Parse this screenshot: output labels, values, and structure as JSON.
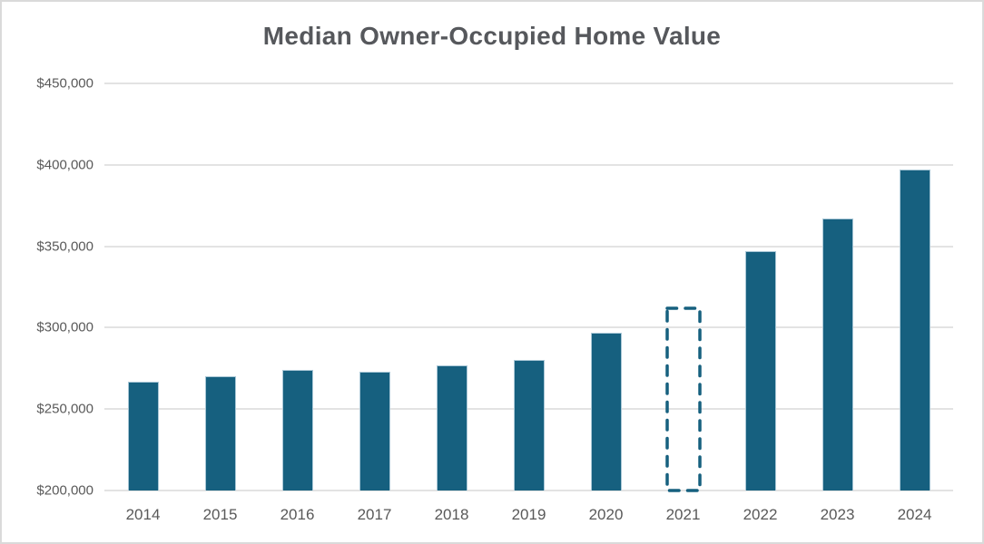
{
  "chart_data": {
    "type": "bar",
    "title": "Median Owner-Occupied Home Value",
    "categories": [
      "2014",
      "2015",
      "2016",
      "2017",
      "2018",
      "2019",
      "2020",
      "2021",
      "2022",
      "2023",
      "2024"
    ],
    "values": [
      267000,
      270000,
      274000,
      273000,
      277000,
      280000,
      297000,
      312000,
      347000,
      367000,
      397000
    ],
    "dashed_category": "2021",
    "dashed_style_note": "2021 bar rendered as dashed teal outline with no fill",
    "ylim": [
      200000,
      450000
    ],
    "y_tick_step": 50000,
    "y_tick_labels": [
      "$450,000",
      "$400,000",
      "$350,000",
      "$300,000",
      "$250,000",
      "$200,000"
    ],
    "xlabel": "",
    "ylabel": "",
    "grid": true,
    "legend": false,
    "colors": {
      "bar": "#16607F",
      "bar_border": "#A9C7D6",
      "dashed_outline": "#16607F",
      "gridline": "#E3E3E3",
      "axis_label": "#595959",
      "title": "#56585C",
      "chart_border": "#DADADA",
      "background": "#FFFFFF"
    }
  }
}
